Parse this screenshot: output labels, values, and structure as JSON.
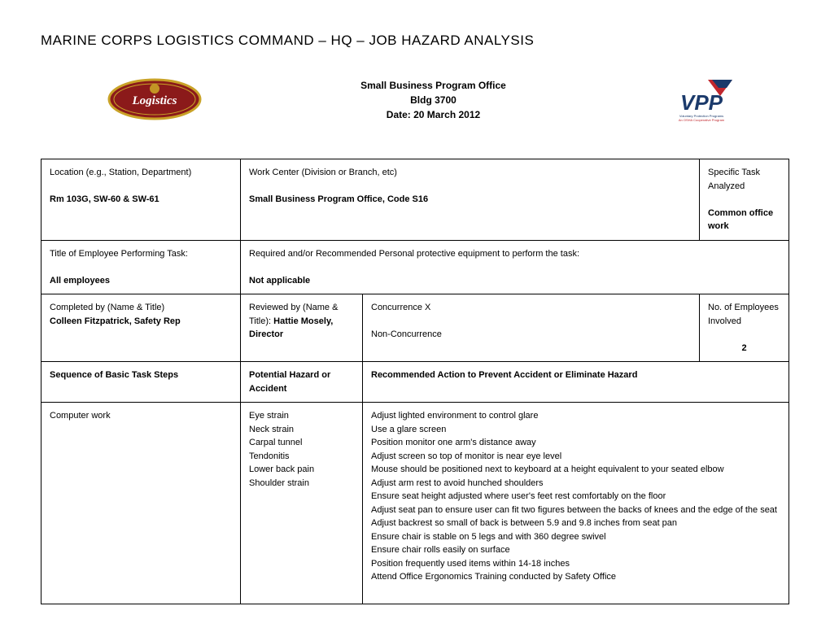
{
  "title": "MARINE CORPS LOGISTICS COMMAND – HQ – JOB HAZARD ANALYSIS",
  "header": {
    "office": "Small Business Program Office",
    "building": "Bldg 3700",
    "date_label": "Date:  20 March 2012"
  },
  "logos": {
    "left": {
      "bg_oval": "#8b1a1a",
      "border": "#c9a227",
      "text": "Logistics",
      "text_color": "#ffffff"
    },
    "right": {
      "text": "VPP",
      "blue": "#1b3a6b",
      "red": "#c1272d",
      "white": "#ffffff"
    }
  },
  "row1": {
    "c1_label": "Location (e.g., Station, Department)",
    "c1_value": "Rm 103G, SW-60 & SW-61",
    "c2_label": "Work Center (Division or Branch, etc)",
    "c2_value": "Small Business Program Office, Code S16",
    "c3_label": "Specific Task Analyzed",
    "c3_value": "Common office work"
  },
  "row2": {
    "c1_label": "Title of Employee Performing Task:",
    "c1_value": "All employees",
    "c2_label": "Required and/or Recommended Personal protective equipment to perform the task:",
    "c2_value": "Not applicable"
  },
  "row3": {
    "c1_label": "Completed by (Name & Title)",
    "c1_value": "Colleen Fitzpatrick, Safety Rep",
    "c2_label": "Reviewed by (Name & Title): ",
    "c2_value": "Hattie Mosely, Director",
    "c3_line1": "Concurrence   X",
    "c3_line2": "Non-Concurrence",
    "c4_label": "No. of Employees Involved",
    "c4_value": "2"
  },
  "columns": {
    "c1": "Sequence of Basic Task Steps",
    "c2": "Potential Hazard or Accident",
    "c3": "Recommended Action to Prevent Accident or Eliminate Hazard"
  },
  "task": {
    "step": "Computer work",
    "hazards": [
      "Eye strain",
      "Neck strain",
      "Carpal tunnel",
      "Tendonitis",
      "Lower back pain",
      "Shoulder strain"
    ],
    "actions": [
      "Adjust lighted environment to control glare",
      "Use a glare screen",
      "Position monitor one arm's distance away",
      "Adjust screen so top of monitor is near eye level",
      "Mouse should be positioned next to keyboard at a height equivalent to your seated elbow",
      "Adjust arm rest to avoid hunched shoulders",
      "Ensure seat height adjusted where user's feet rest comfortably on the floor",
      "Adjust seat pan to ensure user can fit two figures between the backs of knees and the edge of the seat",
      "Adjust backrest so small of back is between 5.9 and 9.8 inches from seat pan",
      "Ensure chair is stable on 5 legs and with 360 degree swivel",
      "Ensure chair rolls easily on surface",
      "Position frequently used items within 14-18 inches",
      "Attend Office Ergonomics Training conducted by Safety Office"
    ]
  },
  "layout": {
    "col_widths": [
      "245px",
      "150px",
      "auto",
      "110px"
    ]
  }
}
